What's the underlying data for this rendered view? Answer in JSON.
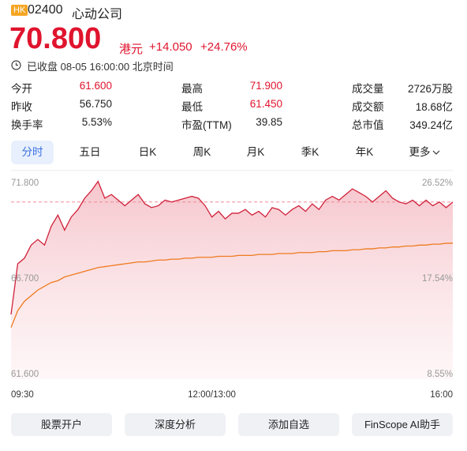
{
  "header": {
    "market": "HK",
    "code": "02400",
    "name": "心动公司",
    "price": "70.800",
    "currency": "港元",
    "change": "+14.050",
    "change_pct": "+24.76%",
    "status": "已收盘 08-05 16:00:00 北京时间"
  },
  "stats": [
    [
      {
        "label": "今开",
        "value": "61.600"
      },
      {
        "label": "最高",
        "value": "71.900"
      },
      {
        "label": "成交量",
        "value": "2726万股"
      }
    ],
    [
      {
        "label": "昨收",
        "value": "56.750"
      },
      {
        "label": "最低",
        "value": "61.450"
      },
      {
        "label": "成交额",
        "value": "18.68亿"
      }
    ],
    [
      {
        "label": "换手率",
        "value": "5.53%"
      },
      {
        "label": "市盈(TTM)",
        "value": "39.85"
      },
      {
        "label": "总市值",
        "value": "349.24亿"
      }
    ]
  ],
  "tabs": [
    "分时",
    "五日",
    "日K",
    "周K",
    "月K",
    "季K",
    "年K",
    "更多"
  ],
  "chart_data": {
    "type": "line",
    "x": [
      0,
      5,
      10,
      15,
      20,
      25,
      30,
      35,
      40,
      45,
      50,
      55,
      60,
      65,
      70,
      75,
      80,
      85,
      90,
      95,
      100,
      105,
      110,
      115,
      120,
      125,
      130,
      135,
      140,
      145,
      150,
      155,
      160,
      165,
      170,
      175,
      180,
      185,
      190,
      195,
      200,
      205,
      210,
      215,
      220,
      225,
      230,
      235,
      240,
      245,
      250,
      255,
      260,
      265,
      270,
      275,
      280,
      285,
      290,
      295,
      300,
      305,
      310,
      315,
      320,
      325,
      330
    ],
    "xlim": [
      0,
      330
    ],
    "xticks": [
      {
        "value": 0,
        "label": "09:30"
      },
      {
        "value": 150,
        "label": "12:00/13:00"
      },
      {
        "value": 330,
        "label": "16:00"
      }
    ],
    "ylim": [
      61.6,
      71.8
    ],
    "yticks": [
      {
        "value": 61.6,
        "label": "61.600"
      },
      {
        "value": 66.7,
        "label": "66.700"
      },
      {
        "value": 71.8,
        "label": "71.800"
      }
    ],
    "y2lim": [
      8.55,
      26.52
    ],
    "y2ticks": [
      {
        "value": 8.55,
        "label": "8.55%"
      },
      {
        "value": 17.54,
        "label": "17.54%"
      },
      {
        "value": 26.52,
        "label": "26.52%"
      }
    ],
    "series": [
      {
        "color": "#d0213a",
        "values": [
          64.8,
          67.5,
          67.8,
          68.5,
          68.8,
          68.5,
          69.5,
          70.1,
          69.3,
          70.0,
          70.4,
          71.0,
          71.4,
          71.9,
          71.0,
          71.2,
          70.9,
          70.6,
          70.9,
          71.2,
          70.7,
          70.5,
          70.6,
          70.9,
          70.8,
          70.9,
          71.0,
          71.1,
          71.0,
          70.6,
          70.0,
          70.3,
          69.9,
          70.2,
          70.2,
          70.4,
          70.1,
          70.3,
          70.0,
          70.5,
          70.4,
          70.1,
          70.4,
          70.6,
          70.3,
          70.7,
          70.4,
          70.9,
          71.1,
          70.9,
          71.2,
          71.5,
          71.3,
          71.1,
          70.8,
          71.1,
          71.4,
          71.0,
          70.8,
          70.7,
          70.9,
          70.6,
          70.9,
          70.6,
          70.8,
          70.5,
          70.8
        ]
      },
      {
        "color": "#ee7a1e",
        "values": [
          64.1,
          65.0,
          65.5,
          65.8,
          66.1,
          66.3,
          66.5,
          66.6,
          66.8,
          66.9,
          67.0,
          67.1,
          67.2,
          67.3,
          67.35,
          67.4,
          67.45,
          67.5,
          67.55,
          67.6,
          67.6,
          67.65,
          67.7,
          67.7,
          67.75,
          67.75,
          67.8,
          67.8,
          67.85,
          67.85,
          67.85,
          67.9,
          67.9,
          67.9,
          67.95,
          67.95,
          67.95,
          68.0,
          68.0,
          68.0,
          68.05,
          68.05,
          68.05,
          68.1,
          68.1,
          68.1,
          68.15,
          68.15,
          68.2,
          68.2,
          68.2,
          68.25,
          68.25,
          68.3,
          68.3,
          68.35,
          68.35,
          68.4,
          68.4,
          68.45,
          68.45,
          68.5,
          68.5,
          68.55,
          68.55,
          68.6,
          68.6
        ]
      }
    ]
  },
  "buttons": [
    "股票开户",
    "深度分析",
    "添加自选",
    "FinScope AI助手"
  ]
}
